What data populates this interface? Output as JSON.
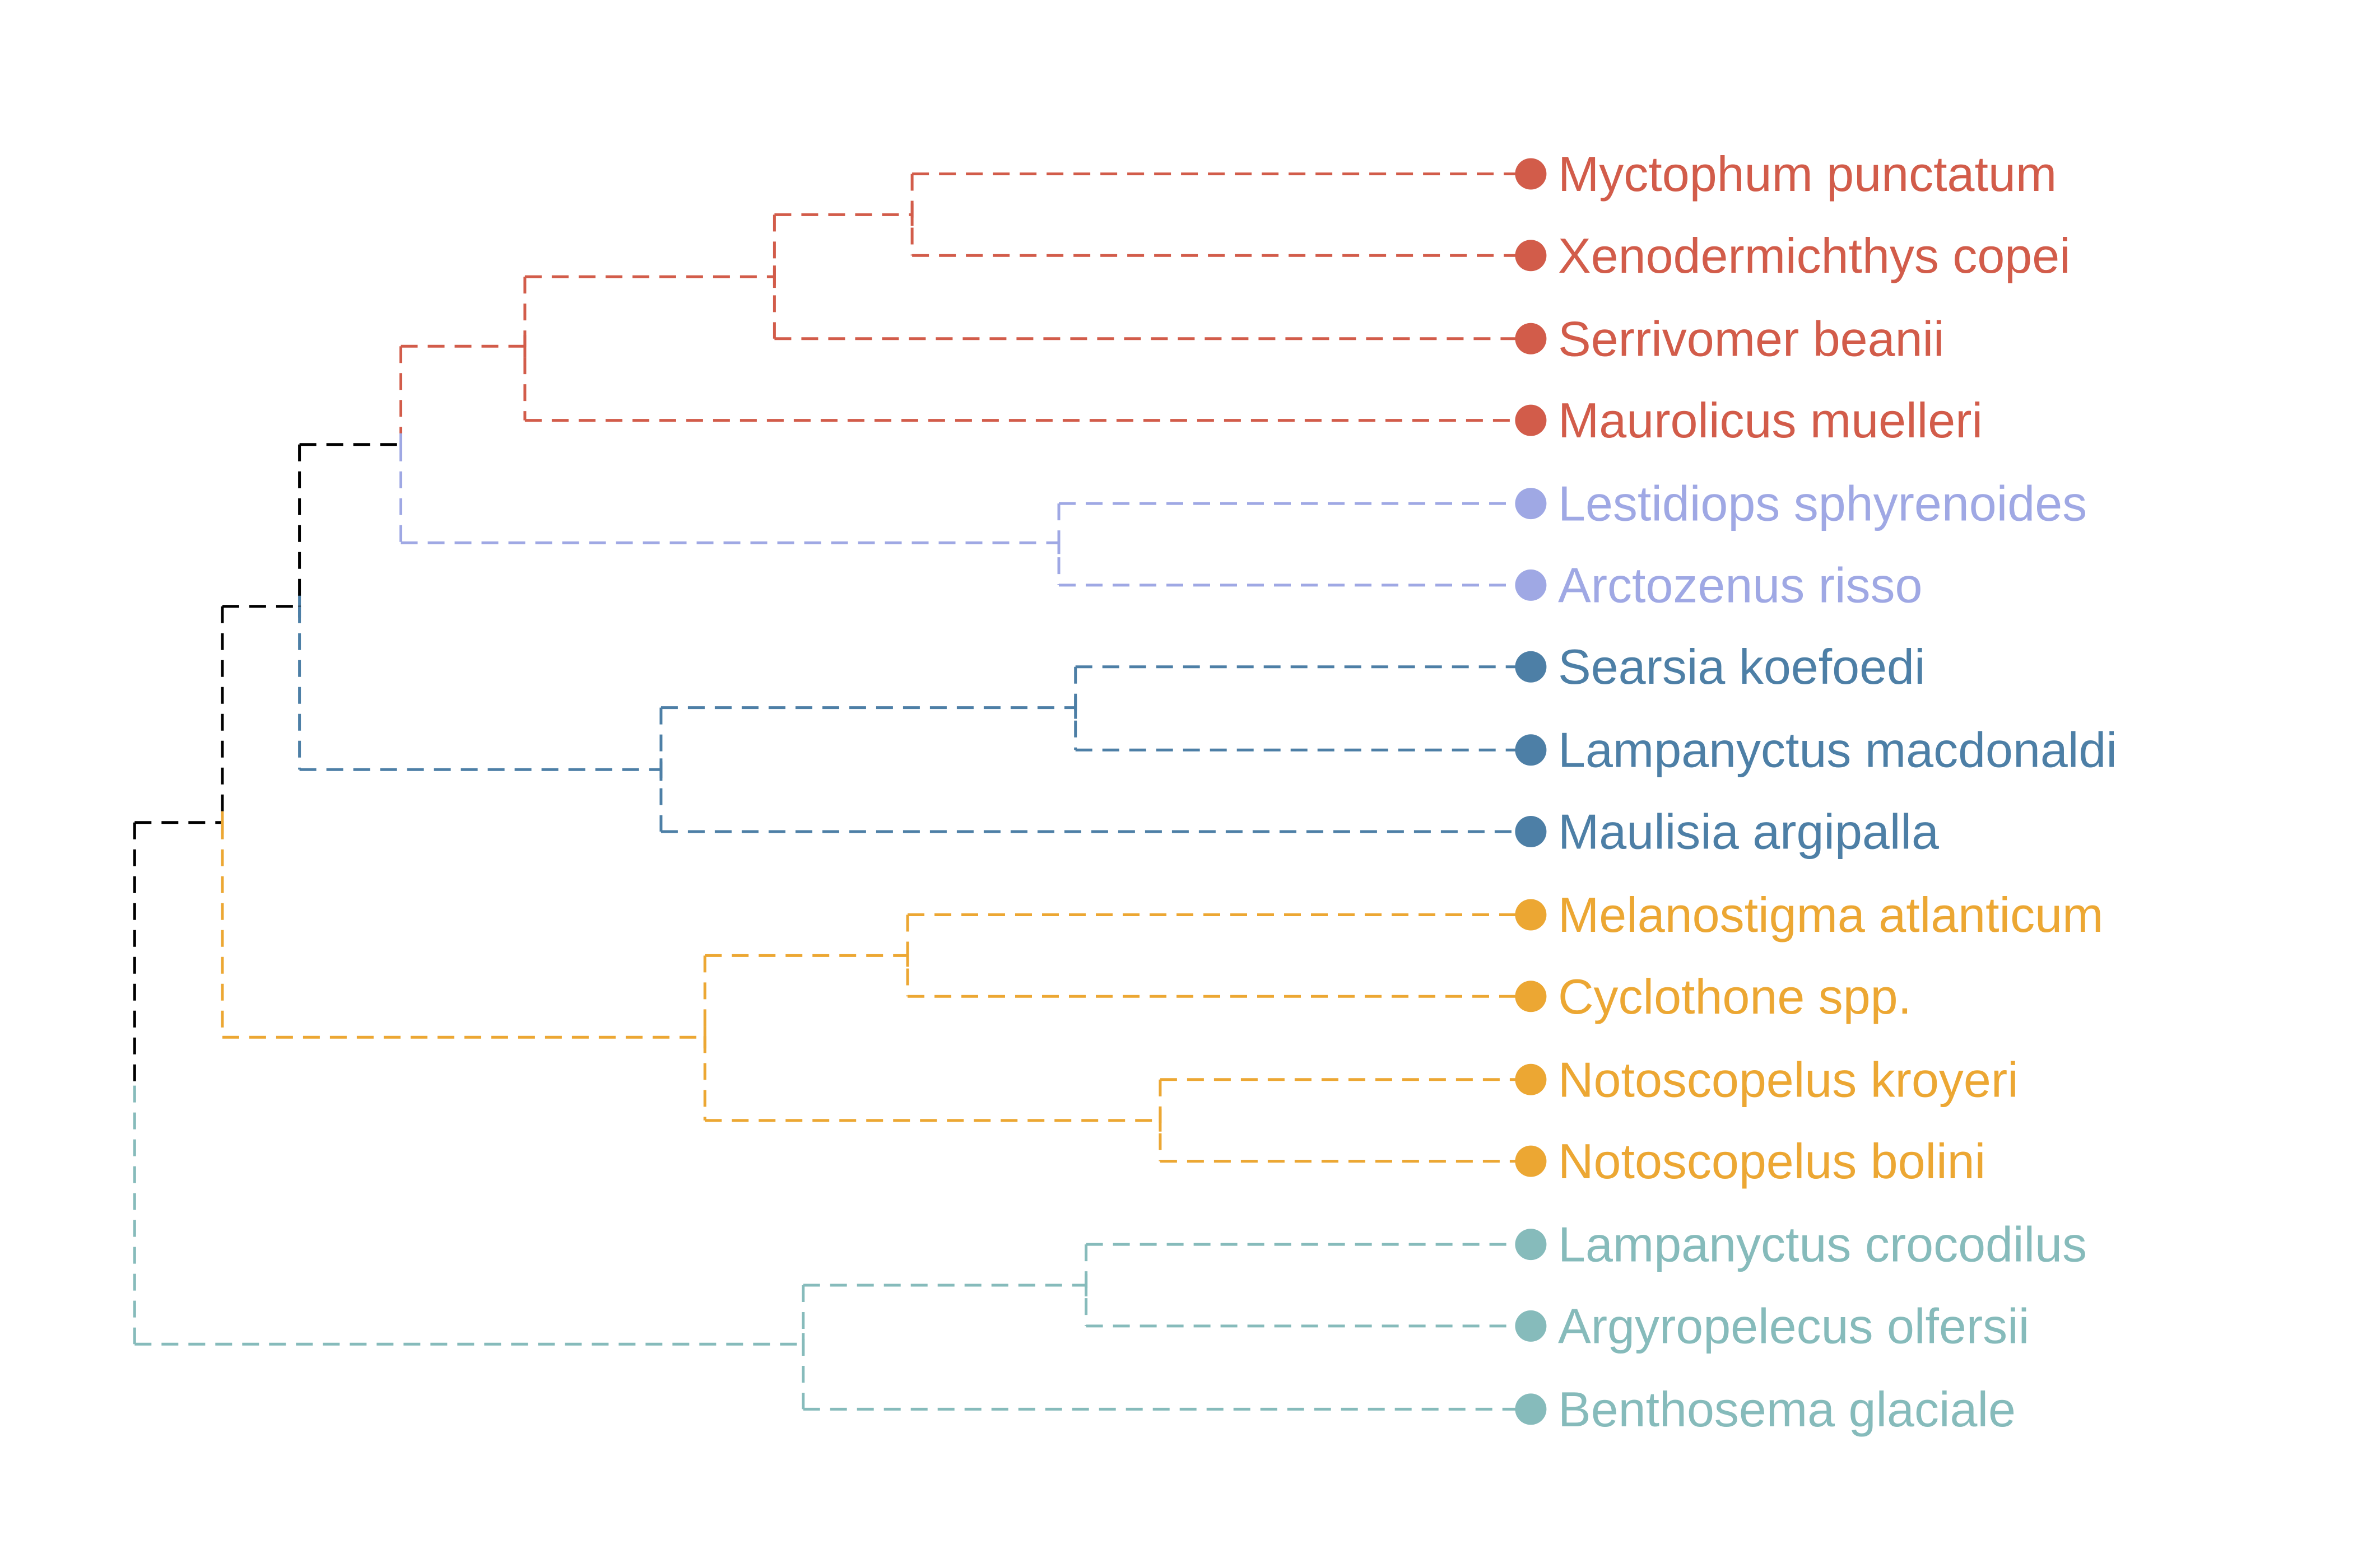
{
  "colors": {
    "red": "#d25c4a",
    "lavender": "#9fa8e4",
    "steel": "#4d7fa6",
    "orange": "#eca733",
    "teal": "#86bbbb",
    "root": "#000000"
  },
  "tips": [
    {
      "label": "Myctophum punctatum",
      "group": "red"
    },
    {
      "label": "Xenodermichthys copei",
      "group": "red"
    },
    {
      "label": "Serrivomer beanii",
      "group": "red"
    },
    {
      "label": "Maurolicus muelleri",
      "group": "red"
    },
    {
      "label": "Lestidiops sphyrenoides",
      "group": "lavender"
    },
    {
      "label": "Arctozenus risso",
      "group": "lavender"
    },
    {
      "label": "Searsia koefoedi",
      "group": "steel"
    },
    {
      "label": "Lampanyctus macdonaldi",
      "group": "steel"
    },
    {
      "label": "Maulisia argipalla",
      "group": "steel"
    },
    {
      "label": "Melanostigma atlanticum",
      "group": "orange"
    },
    {
      "label": "Cyclothone spp.",
      "group": "orange"
    },
    {
      "label": "Notoscopelus kroyeri",
      "group": "orange"
    },
    {
      "label": "Notoscopelus bolini",
      "group": "orange"
    },
    {
      "label": "Lampanyctus crocodilus",
      "group": "teal"
    },
    {
      "label": "Argyropelecus olfersii",
      "group": "teal"
    },
    {
      "label": "Benthosema glaciale",
      "group": "teal"
    }
  ]
}
